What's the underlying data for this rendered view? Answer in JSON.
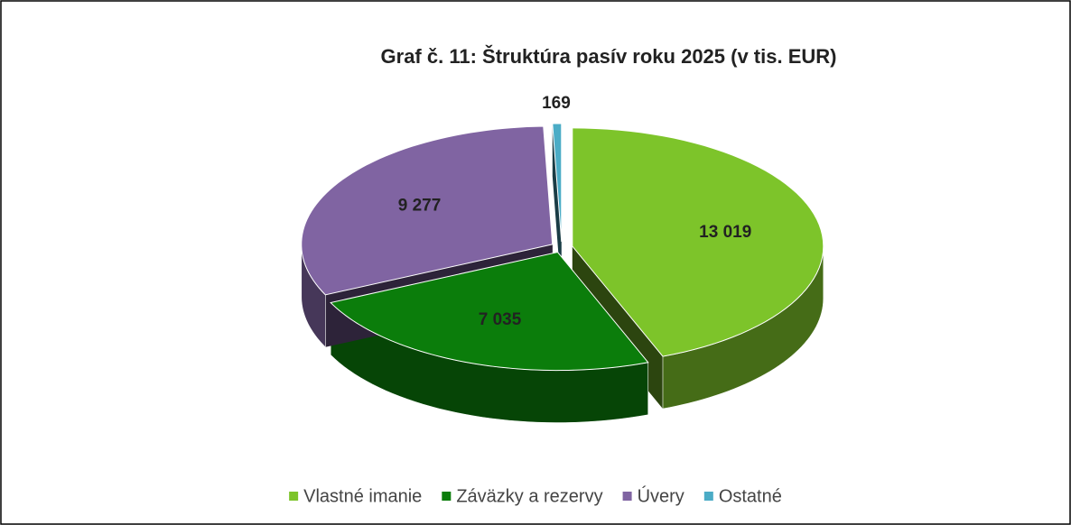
{
  "chart_data": {
    "type": "pie",
    "title": "Graf č. 11: Štruktúra pasív roku 2025 (v tis. EUR)",
    "categories": [
      "Vlastné imanie",
      "Záväzky a rezervy",
      "Úvery",
      "Ostatné"
    ],
    "values": [
      13019,
      7035,
      9277,
      169
    ],
    "value_labels": [
      "13 019",
      "7 035",
      "9 277",
      "169"
    ],
    "colors": [
      "#7dc42a",
      "#0b7d0b",
      "#8064a2",
      "#4bacc6"
    ],
    "legend": "bottom"
  }
}
